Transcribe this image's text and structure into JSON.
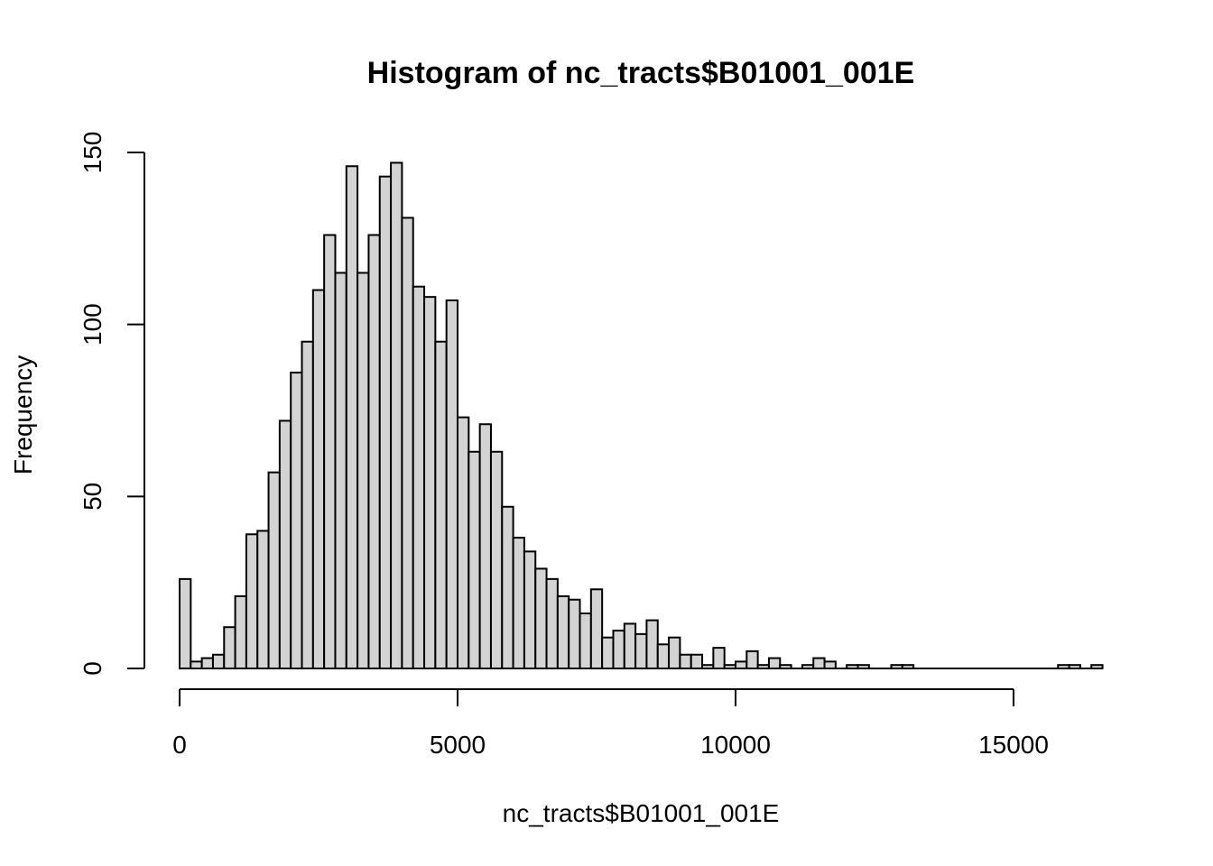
{
  "chart_data": {
    "type": "bar",
    "title": "Histogram of nc_tracts$B01001_001E",
    "xlabel": "nc_tracts$B01001_001E",
    "ylabel": "Frequency",
    "bin_width": 200,
    "bin_start": 0,
    "xlim": [
      0,
      16600
    ],
    "ylim": [
      0,
      150
    ],
    "x_ticks": [
      0,
      5000,
      10000,
      15000
    ],
    "x_tick_labels": [
      "0",
      "5000",
      "10000",
      "15000"
    ],
    "y_ticks": [
      0,
      50,
      100,
      150
    ],
    "y_tick_labels": [
      "0",
      "50",
      "100",
      "150"
    ],
    "grid": false,
    "values": [
      26,
      2,
      3,
      4,
      12,
      21,
      39,
      40,
      57,
      72,
      86,
      95,
      110,
      126,
      115,
      146,
      115,
      126,
      143,
      147,
      131,
      111,
      108,
      95,
      107,
      73,
      63,
      71,
      63,
      47,
      38,
      34,
      29,
      26,
      21,
      20,
      16,
      23,
      9,
      11,
      13,
      10,
      14,
      7,
      9,
      4,
      4,
      1,
      6,
      1,
      2,
      5,
      1,
      3,
      1,
      0,
      1,
      3,
      2,
      0,
      1,
      1,
      0,
      0,
      1,
      1,
      0,
      0,
      0,
      0,
      0,
      0,
      0,
      0,
      0,
      0,
      0,
      0,
      0,
      1,
      1,
      0,
      1
    ]
  }
}
